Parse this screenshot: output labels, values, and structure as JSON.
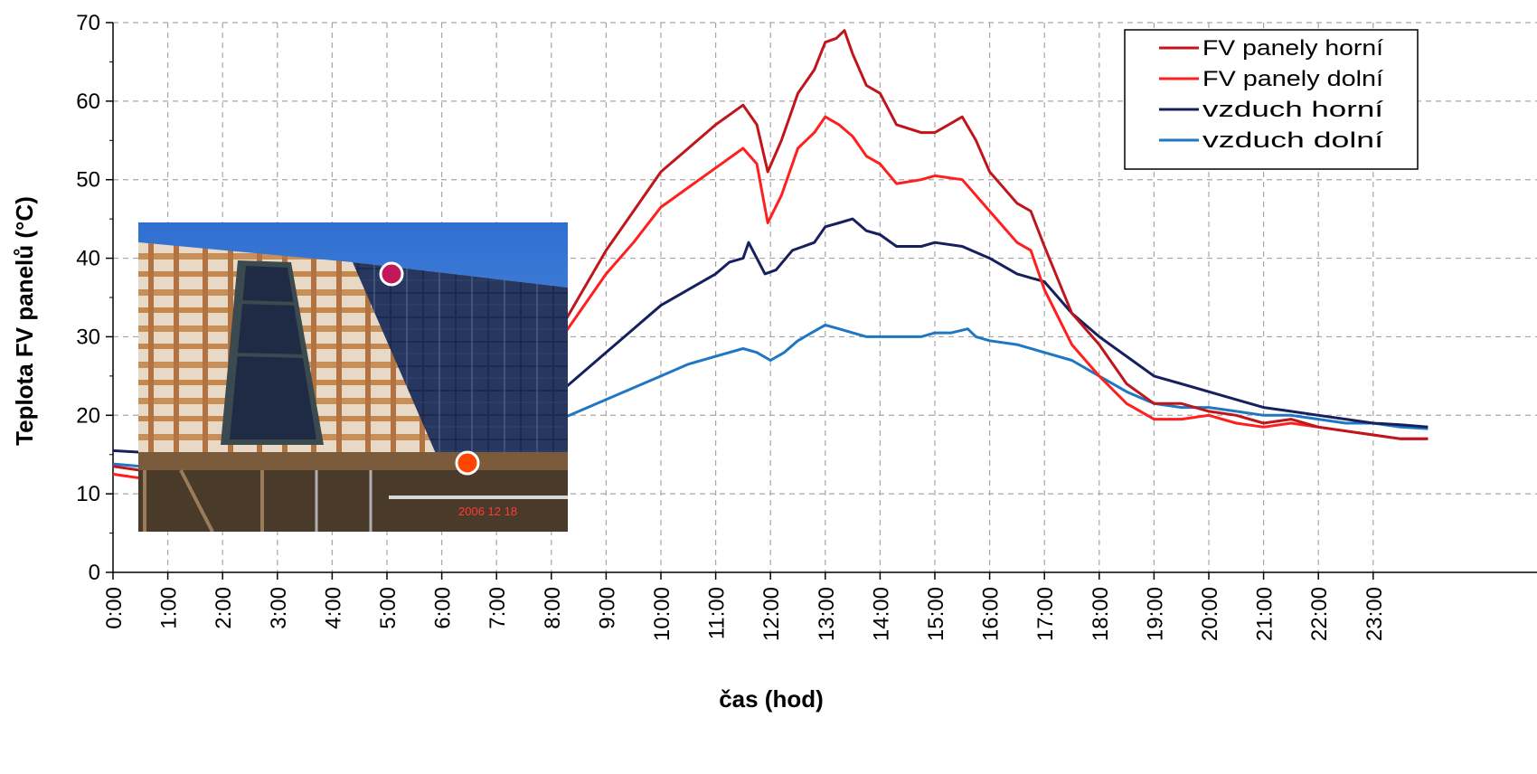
{
  "chart_data": {
    "type": "line",
    "title": "",
    "xlabel": "čas (hod)",
    "ylabel": "Teplota FV panelů (°C)",
    "xlim": [
      0,
      24
    ],
    "ylim": [
      0,
      70
    ],
    "yticks": [
      0,
      10,
      20,
      30,
      40,
      50,
      60,
      70
    ],
    "xtick_labels": [
      "0:00",
      "1:00",
      "2:00",
      "3:00",
      "4:00",
      "5:00",
      "6:00",
      "7:00",
      "8:00",
      "9:00",
      "10:00",
      "11:00",
      "12:00",
      "13:00",
      "14:00",
      "15:00",
      "16:00",
      "17:00",
      "18:00",
      "19:00",
      "20:00",
      "21:00",
      "22:00",
      "23:00"
    ],
    "grid": true,
    "legend_position": "top-right",
    "series": [
      {
        "name": "FV panely horní",
        "color": "#c0161b",
        "points": [
          [
            0,
            13.5
          ],
          [
            0.5,
            13
          ],
          [
            1,
            12.5
          ],
          [
            8,
            29
          ],
          [
            8.5,
            35
          ],
          [
            9,
            41
          ],
          [
            9.5,
            46
          ],
          [
            10,
            51
          ],
          [
            10.5,
            54
          ],
          [
            11,
            57
          ],
          [
            11.5,
            59.5
          ],
          [
            11.75,
            57
          ],
          [
            11.95,
            51
          ],
          [
            12.2,
            55
          ],
          [
            12.5,
            61
          ],
          [
            12.8,
            64
          ],
          [
            13,
            67.5
          ],
          [
            13.2,
            68
          ],
          [
            13.35,
            69
          ],
          [
            13.5,
            66
          ],
          [
            13.75,
            62
          ],
          [
            14,
            61
          ],
          [
            14.3,
            57
          ],
          [
            14.75,
            56
          ],
          [
            15,
            56
          ],
          [
            15.25,
            57
          ],
          [
            15.5,
            58
          ],
          [
            15.75,
            55
          ],
          [
            16,
            51
          ],
          [
            16.5,
            47
          ],
          [
            16.75,
            46
          ],
          [
            17,
            41.5
          ],
          [
            17.5,
            33
          ],
          [
            18,
            29
          ],
          [
            18.5,
            24
          ],
          [
            19,
            21.5
          ],
          [
            19.5,
            21.5
          ],
          [
            20,
            20.5
          ],
          [
            20.5,
            20
          ],
          [
            21,
            19
          ],
          [
            21.5,
            19.5
          ],
          [
            22,
            18.5
          ],
          [
            22.5,
            18
          ],
          [
            23,
            17.5
          ],
          [
            23.5,
            17
          ],
          [
            24,
            17
          ]
        ]
      },
      {
        "name": "FV panely dolní",
        "color": "#ff1f1f",
        "points": [
          [
            0,
            12.5
          ],
          [
            0.5,
            12
          ],
          [
            1,
            11.5
          ],
          [
            8,
            28
          ],
          [
            8.5,
            33
          ],
          [
            9,
            38
          ],
          [
            9.5,
            42
          ],
          [
            10,
            46.5
          ],
          [
            10.5,
            49
          ],
          [
            11,
            51.5
          ],
          [
            11.5,
            54
          ],
          [
            11.75,
            52
          ],
          [
            11.95,
            44.5
          ],
          [
            12.2,
            48
          ],
          [
            12.5,
            54
          ],
          [
            12.8,
            56
          ],
          [
            13,
            58
          ],
          [
            13.25,
            57
          ],
          [
            13.5,
            55.5
          ],
          [
            13.75,
            53
          ],
          [
            14,
            52
          ],
          [
            14.3,
            49.5
          ],
          [
            14.75,
            50
          ],
          [
            15,
            50.5
          ],
          [
            15.5,
            50
          ],
          [
            15.75,
            48
          ],
          [
            16,
            46
          ],
          [
            16.5,
            42
          ],
          [
            16.75,
            41
          ],
          [
            17,
            36
          ],
          [
            17.5,
            29
          ],
          [
            18,
            25
          ],
          [
            18.5,
            21.5
          ],
          [
            19,
            19.5
          ],
          [
            19.5,
            19.5
          ],
          [
            20,
            20
          ],
          [
            20.5,
            19
          ],
          [
            21,
            18.5
          ],
          [
            21.5,
            19
          ],
          [
            22,
            18.5
          ],
          [
            22.5,
            18
          ],
          [
            23,
            17.5
          ],
          [
            23.5,
            17
          ],
          [
            24,
            17
          ]
        ]
      },
      {
        "name": "vzduch horní",
        "color": "#16205e",
        "points": [
          [
            0,
            15.5
          ],
          [
            0.5,
            15.3
          ],
          [
            1,
            15.2
          ],
          [
            8,
            22
          ],
          [
            8.5,
            25
          ],
          [
            9,
            28
          ],
          [
            9.5,
            31
          ],
          [
            10,
            34
          ],
          [
            10.5,
            36
          ],
          [
            11,
            38
          ],
          [
            11.25,
            39.5
          ],
          [
            11.5,
            40
          ],
          [
            11.6,
            42
          ],
          [
            11.75,
            40
          ],
          [
            11.9,
            38
          ],
          [
            12.1,
            38.5
          ],
          [
            12.4,
            41
          ],
          [
            12.8,
            42
          ],
          [
            13,
            44
          ],
          [
            13.25,
            44.5
          ],
          [
            13.5,
            45
          ],
          [
            13.75,
            43.5
          ],
          [
            14,
            43
          ],
          [
            14.3,
            41.5
          ],
          [
            14.75,
            41.5
          ],
          [
            15,
            42
          ],
          [
            15.5,
            41.5
          ],
          [
            16,
            40
          ],
          [
            16.5,
            38
          ],
          [
            17,
            37
          ],
          [
            17.25,
            35
          ],
          [
            17.5,
            33
          ],
          [
            18,
            30
          ],
          [
            18.5,
            27.5
          ],
          [
            19,
            25
          ],
          [
            19.5,
            24
          ],
          [
            20,
            23
          ],
          [
            20.5,
            22
          ],
          [
            21,
            21
          ],
          [
            21.5,
            20.5
          ],
          [
            22,
            20
          ],
          [
            22.5,
            19.5
          ],
          [
            23,
            19
          ],
          [
            23.5,
            18.8
          ],
          [
            24,
            18.5
          ]
        ]
      },
      {
        "name": "vzduch dolní",
        "color": "#1f77c4",
        "points": [
          [
            0,
            13.8
          ],
          [
            0.5,
            13.5
          ],
          [
            1,
            13
          ],
          [
            8,
            19
          ],
          [
            8.5,
            20.5
          ],
          [
            9,
            22
          ],
          [
            9.5,
            23.5
          ],
          [
            10,
            25
          ],
          [
            10.5,
            26.5
          ],
          [
            11,
            27.5
          ],
          [
            11.5,
            28.5
          ],
          [
            11.75,
            28
          ],
          [
            12,
            27
          ],
          [
            12.25,
            28
          ],
          [
            12.5,
            29.5
          ],
          [
            12.75,
            30.5
          ],
          [
            13,
            31.5
          ],
          [
            13.25,
            31
          ],
          [
            13.5,
            30.5
          ],
          [
            13.75,
            30
          ],
          [
            14,
            30
          ],
          [
            14.3,
            30
          ],
          [
            14.75,
            30
          ],
          [
            15,
            30.5
          ],
          [
            15.3,
            30.5
          ],
          [
            15.6,
            31
          ],
          [
            15.75,
            30
          ],
          [
            16,
            29.5
          ],
          [
            16.5,
            29
          ],
          [
            17,
            28
          ],
          [
            17.5,
            27
          ],
          [
            18,
            25
          ],
          [
            18.5,
            23
          ],
          [
            19,
            21.5
          ],
          [
            19.5,
            21
          ],
          [
            20,
            21
          ],
          [
            20.5,
            20.5
          ],
          [
            21,
            20
          ],
          [
            21.5,
            20
          ],
          [
            22,
            19.5
          ],
          [
            22.5,
            19
          ],
          [
            23,
            19
          ],
          [
            23.5,
            18.5
          ],
          [
            24,
            18.3
          ]
        ]
      }
    ]
  },
  "inset_photo": {
    "date_stamp": "2006 12 18",
    "marker_top_color": "#c2185b",
    "marker_bottom_color": "#ff4500"
  }
}
